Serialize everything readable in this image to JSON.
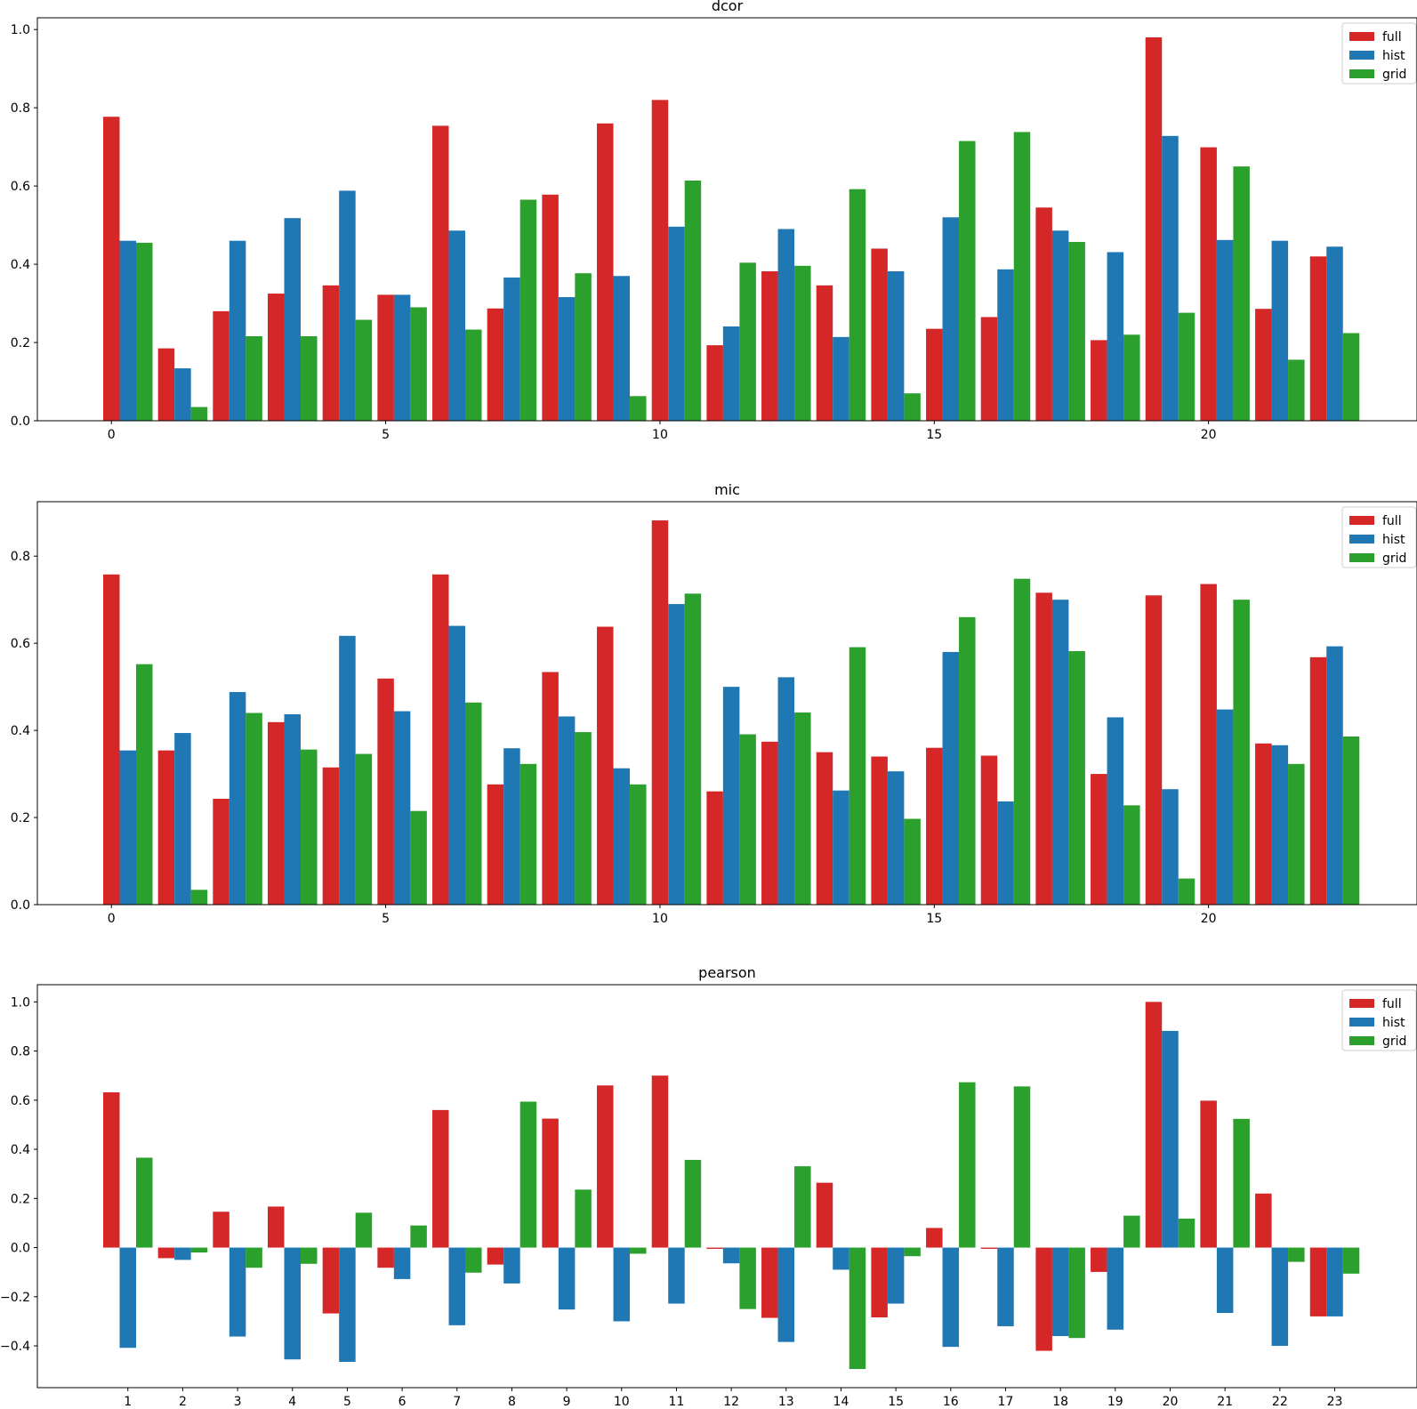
{
  "colors": {
    "full": "#d62728",
    "hist": "#1f77b4",
    "grid": "#2ca02c"
  },
  "chart_data": [
    {
      "type": "bar",
      "title": "dcor",
      "x": [
        0,
        1,
        2,
        3,
        4,
        5,
        6,
        7,
        8,
        9,
        10,
        11,
        12,
        13,
        14,
        15,
        16,
        17,
        18,
        19,
        20,
        21,
        22
      ],
      "xticks": [
        0,
        5,
        10,
        15,
        20
      ],
      "xtick_labels": [
        "0",
        "5",
        "10",
        "15",
        "20"
      ],
      "xlim": [
        -1.35,
        23.8
      ],
      "ylim": [
        0,
        1.03
      ],
      "yticks": [
        0.0,
        0.2,
        0.4,
        0.6,
        0.8,
        1.0
      ],
      "ytick_labels": [
        "0.0",
        "0.2",
        "0.4",
        "0.6",
        "0.8",
        "1.0"
      ],
      "legend": "top-right",
      "series": [
        {
          "name": "full",
          "values": [
            0.777,
            0.185,
            0.28,
            0.325,
            0.346,
            0.322,
            0.754,
            0.287,
            0.578,
            0.76,
            0.82,
            0.193,
            0.382,
            0.346,
            0.44,
            0.235,
            0.265,
            0.545,
            0.206,
            0.98,
            0.699,
            0.286,
            0.42
          ]
        },
        {
          "name": "hist",
          "values": [
            0.46,
            0.134,
            0.46,
            0.518,
            0.588,
            0.322,
            0.486,
            0.366,
            0.316,
            0.37,
            0.496,
            0.241,
            0.49,
            0.214,
            0.382,
            0.52,
            0.387,
            0.486,
            0.431,
            0.728,
            0.462,
            0.46,
            0.445
          ]
        },
        {
          "name": "grid",
          "values": [
            0.455,
            0.035,
            0.216,
            0.216,
            0.258,
            0.29,
            0.233,
            0.565,
            0.377,
            0.063,
            0.614,
            0.404,
            0.396,
            0.592,
            0.07,
            0.715,
            0.738,
            0.457,
            0.22,
            0.276,
            0.65,
            0.156,
            0.224
          ]
        }
      ]
    },
    {
      "type": "bar",
      "title": "mic",
      "x": [
        0,
        1,
        2,
        3,
        4,
        5,
        6,
        7,
        8,
        9,
        10,
        11,
        12,
        13,
        14,
        15,
        16,
        17,
        18,
        19,
        20,
        21,
        22
      ],
      "xticks": [
        0,
        5,
        10,
        15,
        20
      ],
      "xtick_labels": [
        "0",
        "5",
        "10",
        "15",
        "20"
      ],
      "xlim": [
        -1.35,
        23.8
      ],
      "ylim": [
        0,
        0.925
      ],
      "yticks": [
        0.0,
        0.2,
        0.4,
        0.6,
        0.8
      ],
      "ytick_labels": [
        "0.0",
        "0.2",
        "0.4",
        "0.6",
        "0.8"
      ],
      "legend": "top-right",
      "series": [
        {
          "name": "full",
          "values": [
            0.758,
            0.354,
            0.243,
            0.419,
            0.315,
            0.519,
            0.758,
            0.276,
            0.534,
            0.638,
            0.882,
            0.26,
            0.374,
            0.35,
            0.34,
            0.36,
            0.342,
            0.716,
            0.3,
            0.71,
            0.736,
            0.37,
            0.568
          ]
        },
        {
          "name": "hist",
          "values": [
            0.354,
            0.394,
            0.488,
            0.437,
            0.617,
            0.444,
            0.64,
            0.359,
            0.432,
            0.313,
            0.69,
            0.5,
            0.522,
            0.262,
            0.306,
            0.58,
            0.237,
            0.7,
            0.43,
            0.265,
            0.448,
            0.366,
            0.593
          ]
        },
        {
          "name": "grid",
          "values": [
            0.552,
            0.034,
            0.44,
            0.356,
            0.346,
            0.215,
            0.464,
            0.323,
            0.396,
            0.276,
            0.714,
            0.391,
            0.441,
            0.591,
            0.197,
            0.66,
            0.748,
            0.582,
            0.228,
            0.06,
            0.7,
            0.323,
            0.386
          ]
        }
      ]
    },
    {
      "type": "bar",
      "title": "pearson",
      "x": [
        1,
        2,
        3,
        4,
        5,
        6,
        7,
        8,
        9,
        10,
        11,
        12,
        13,
        14,
        15,
        16,
        17,
        18,
        19,
        20,
        21,
        22,
        23
      ],
      "xticks": [
        1,
        2,
        3,
        4,
        5,
        6,
        7,
        8,
        9,
        10,
        11,
        12,
        13,
        14,
        15,
        16,
        17,
        18,
        19,
        20,
        21,
        22,
        23
      ],
      "xtick_labels": [
        "1",
        "2",
        "3",
        "4",
        "5",
        "6",
        "7",
        "8",
        "9",
        "10",
        "11",
        "12",
        "13",
        "14",
        "15",
        "16",
        "17",
        "18",
        "19",
        "20",
        "21",
        "22",
        "23"
      ],
      "xlim": [
        -0.35,
        24.8
      ],
      "ylim": [
        -0.57,
        1.07
      ],
      "yticks": [
        -0.4,
        -0.2,
        0.0,
        0.2,
        0.4,
        0.6,
        0.8,
        1.0
      ],
      "ytick_labels": [
        "−0.4",
        "−0.2",
        "0.0",
        "0.2",
        "0.4",
        "0.6",
        "0.8",
        "1.0"
      ],
      "legend": "top-right",
      "series": [
        {
          "name": "full",
          "values": [
            0.632,
            -0.043,
            0.146,
            0.167,
            -0.268,
            -0.082,
            0.56,
            -0.069,
            0.525,
            0.66,
            0.7,
            -0.005,
            -0.286,
            0.264,
            -0.284,
            0.08,
            -0.005,
            -0.42,
            -0.099,
            1.0,
            0.598,
            0.22,
            -0.28
          ]
        },
        {
          "name": "hist",
          "values": [
            -0.408,
            -0.05,
            -0.362,
            -0.455,
            -0.465,
            -0.128,
            -0.316,
            -0.146,
            -0.252,
            -0.3,
            -0.228,
            -0.064,
            -0.384,
            -0.09,
            -0.228,
            -0.404,
            -0.32,
            -0.36,
            -0.334,
            0.882,
            -0.266,
            -0.4,
            -0.28
          ]
        },
        {
          "name": "grid",
          "values": [
            0.366,
            -0.02,
            -0.082,
            -0.066,
            0.142,
            0.09,
            -0.102,
            0.594,
            0.236,
            -0.025,
            0.357,
            -0.25,
            0.331,
            -0.494,
            -0.035,
            0.673,
            0.656,
            -0.368,
            0.13,
            0.118,
            0.524,
            -0.058,
            -0.106
          ]
        }
      ]
    }
  ]
}
